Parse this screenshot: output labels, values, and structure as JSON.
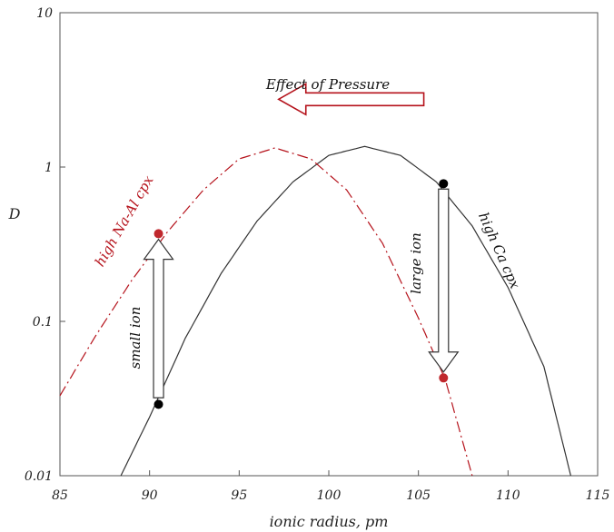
{
  "chart_data": {
    "type": "line",
    "title": "",
    "xlabel": "ionic radius, pm",
    "ylabel": "D",
    "xlim": [
      85,
      115
    ],
    "ylim": [
      0.01,
      10
    ],
    "yscale": "log",
    "grid": false,
    "x_ticks": [
      "85",
      "90",
      "95",
      "100",
      "105",
      "110",
      "115"
    ],
    "y_ticks": [
      "0.01",
      "0.1",
      "1",
      "10"
    ],
    "series": [
      {
        "name": "high Ca cpx",
        "color": "#333333",
        "style": "solid",
        "x": [
          88.4,
          90,
          92,
          94,
          96,
          98,
          100,
          102,
          104,
          106,
          108,
          110,
          112,
          113.5
        ],
        "y": [
          0.01,
          0.024,
          0.078,
          0.205,
          0.447,
          0.801,
          1.19,
          1.36,
          1.19,
          0.801,
          0.415,
          0.166,
          0.051,
          0.01
        ]
      },
      {
        "name": "high Na-Al cpx",
        "color": "#b5121b",
        "style": "dashdot",
        "x": [
          85,
          87,
          89,
          91,
          93,
          95,
          97,
          99,
          101,
          103,
          105,
          106.5,
          108
        ],
        "y": [
          0.033,
          0.081,
          0.184,
          0.38,
          0.71,
          1.13,
          1.33,
          1.13,
          0.71,
          0.32,
          0.105,
          0.042,
          0.01
        ]
      }
    ],
    "points": [
      {
        "x": 90.5,
        "y": 0.37,
        "color": "#c0282d"
      },
      {
        "x": 90.5,
        "y": 0.029,
        "color": "#000000"
      },
      {
        "x": 106.4,
        "y": 0.78,
        "color": "#000000"
      },
      {
        "x": 106.4,
        "y": 0.043,
        "color": "#c0282d"
      }
    ],
    "annotations": {
      "pressure": "Effect of Pressure",
      "small_ion": "small ion",
      "large_ion": "large ion",
      "na_curve": "high Na-Al cpx",
      "ca_curve": "high Ca cpx"
    },
    "arrows": [
      {
        "label": "pressure",
        "from": [
          105.3,
          2.75
        ],
        "to": [
          97.2,
          2.75
        ]
      },
      {
        "label": "small_ion",
        "from": [
          90.5,
          0.032
        ],
        "to": [
          90.5,
          0.34
        ]
      },
      {
        "label": "large_ion",
        "from": [
          106.4,
          0.72
        ],
        "to": [
          106.4,
          0.047
        ]
      }
    ]
  }
}
